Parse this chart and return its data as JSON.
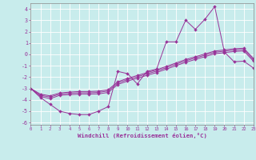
{
  "background_color": "#c8ecec",
  "line_color": "#993399",
  "xlabel": "Windchill (Refroidissement éolien,°C)",
  "xlim": [
    0,
    23
  ],
  "ylim": [
    -6.2,
    4.5
  ],
  "xticks": [
    0,
    1,
    2,
    3,
    4,
    5,
    6,
    7,
    8,
    9,
    10,
    11,
    12,
    13,
    14,
    15,
    16,
    17,
    18,
    19,
    20,
    21,
    22,
    23
  ],
  "yticks": [
    -6,
    -5,
    -4,
    -3,
    -2,
    -1,
    0,
    1,
    2,
    3,
    4
  ],
  "line1_x": [
    0,
    1,
    2,
    3,
    4,
    5,
    6,
    7,
    8,
    9,
    10,
    11,
    12,
    13,
    14,
    15,
    16,
    17,
    18,
    19,
    20,
    21,
    22,
    23
  ],
  "line1_y": [
    -3.0,
    -3.8,
    -4.4,
    -5.0,
    -5.2,
    -5.3,
    -5.3,
    -5.0,
    -4.6,
    -1.5,
    -1.7,
    -2.6,
    -1.5,
    -1.3,
    1.1,
    1.1,
    3.0,
    2.2,
    3.1,
    4.2,
    0.2,
    -0.65,
    -0.6,
    -1.2
  ],
  "line2_x": [
    0,
    1,
    2,
    3,
    4,
    5,
    6,
    7,
    8,
    9,
    10,
    11,
    12,
    13,
    14,
    15,
    16,
    17,
    18,
    19,
    20,
    21,
    22,
    23
  ],
  "line2_y": [
    -3.0,
    -3.7,
    -3.9,
    -3.6,
    -3.55,
    -3.5,
    -3.5,
    -3.48,
    -3.35,
    -2.65,
    -2.35,
    -2.1,
    -1.85,
    -1.6,
    -1.3,
    -1.0,
    -0.7,
    -0.45,
    -0.2,
    0.05,
    0.15,
    0.25,
    0.3,
    -0.6
  ],
  "line3_x": [
    0,
    1,
    2,
    3,
    4,
    5,
    6,
    7,
    8,
    9,
    10,
    11,
    12,
    13,
    14,
    15,
    16,
    17,
    18,
    19,
    20,
    21,
    22,
    23
  ],
  "line3_y": [
    -3.0,
    -3.6,
    -3.75,
    -3.5,
    -3.42,
    -3.38,
    -3.38,
    -3.35,
    -3.22,
    -2.52,
    -2.22,
    -1.97,
    -1.72,
    -1.47,
    -1.17,
    -0.87,
    -0.57,
    -0.32,
    -0.07,
    0.18,
    0.28,
    0.38,
    0.43,
    -0.47
  ],
  "line4_x": [
    0,
    1,
    2,
    3,
    4,
    5,
    6,
    7,
    8,
    9,
    10,
    11,
    12,
    13,
    14,
    15,
    16,
    17,
    18,
    19,
    20,
    21,
    22,
    23
  ],
  "line4_y": [
    -3.0,
    -3.5,
    -3.65,
    -3.4,
    -3.32,
    -3.27,
    -3.27,
    -3.24,
    -3.11,
    -2.41,
    -2.11,
    -1.86,
    -1.61,
    -1.36,
    -1.06,
    -0.76,
    -0.46,
    -0.21,
    0.04,
    0.29,
    0.39,
    0.49,
    0.54,
    -0.36
  ]
}
